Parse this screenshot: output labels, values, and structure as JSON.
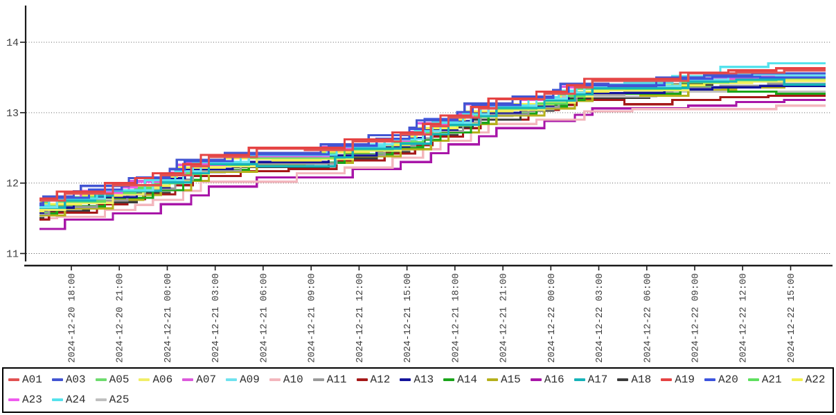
{
  "page": {
    "background": "#ffffff",
    "axis_color": "#1a1a1a",
    "tick_label_color": "#3c3c3c"
  },
  "legend": {
    "border_color": "#000000",
    "background": "#ffffff",
    "rows_hint": 2
  },
  "chart_data": {
    "type": "line",
    "subtype": "step",
    "title": "",
    "xlabel": "",
    "ylabel": "",
    "grid": {
      "horizontal": true,
      "vertical": false,
      "style": "dotted",
      "color": "#444444"
    },
    "legend_position": "bottom",
    "y_axis": {
      "ticks": [
        11,
        12,
        13,
        14
      ],
      "ylim": [
        10.8,
        14.5
      ]
    },
    "x_axis": {
      "tick_labels": [
        "2024-12-20 18:00",
        "2024-12-20 21:00",
        "2024-12-21 00:00",
        "2024-12-21 03:00",
        "2024-12-21 06:00",
        "2024-12-21 09:00",
        "2024-12-21 12:00",
        "2024-12-21 15:00",
        "2024-12-21 18:00",
        "2024-12-21 21:00",
        "2024-12-22 00:00",
        "2024-12-22 03:00",
        "2024-12-22 06:00",
        "2024-12-22 09:00",
        "2024-12-22 12:00",
        "2024-12-22 15:00"
      ],
      "tick_interval_hours": 3,
      "first_tick_hour": 2,
      "end_hour": 49.2
    },
    "x_hours": [
      0,
      2,
      5,
      8,
      11,
      14,
      17,
      20,
      23,
      26,
      29,
      32,
      35,
      38,
      41,
      44,
      47
    ],
    "series": [
      {
        "name": "A01",
        "color": "#e15252",
        "values": [
          11.75,
          11.85,
          11.97,
          12.11,
          12.37,
          12.49,
          12.47,
          12.59,
          12.69,
          12.93,
          13.19,
          13.27,
          13.45,
          13.45,
          13.56,
          13.57,
          13.6
        ]
      },
      {
        "name": "A03",
        "color": "#4355d2",
        "values": [
          11.71,
          11.81,
          11.96,
          12.07,
          12.33,
          12.43,
          12.43,
          12.55,
          12.68,
          12.89,
          13.13,
          13.23,
          13.41,
          13.38,
          13.5,
          13.53,
          13.56
        ]
      },
      {
        "name": "A05",
        "color": "#6edc6e",
        "values": [
          11.66,
          11.8,
          11.88,
          12.02,
          12.28,
          12.38,
          12.42,
          12.5,
          12.6,
          12.84,
          13.08,
          13.18,
          13.34,
          13.36,
          13.45,
          13.48,
          13.51
        ]
      },
      {
        "name": "A06",
        "color": "#f1ee68",
        "values": [
          11.62,
          11.72,
          11.84,
          12.02,
          12.24,
          12.34,
          12.34,
          12.46,
          12.56,
          12.84,
          13.04,
          13.14,
          13.32,
          13.32,
          13.45,
          13.44,
          13.47
        ]
      },
      {
        "name": "A07",
        "color": "#dc5adc",
        "values": [
          11.67,
          11.77,
          11.89,
          12.03,
          12.26,
          12.39,
          12.39,
          12.51,
          12.61,
          12.85,
          13.12,
          13.19,
          13.37,
          13.37,
          13.46,
          13.49,
          13.52
        ]
      },
      {
        "name": "A09",
        "color": "#6fe2ef",
        "values": [
          11.66,
          11.78,
          11.9,
          12.04,
          12.3,
          12.4,
          12.4,
          12.55,
          12.62,
          12.86,
          13.1,
          13.2,
          13.38,
          13.38,
          13.47,
          13.54,
          13.53
        ]
      },
      {
        "name": "A10",
        "color": "#f3b6bd",
        "values": [
          11.5,
          11.52,
          11.62,
          11.76,
          12.02,
          12.02,
          12.14,
          12.22,
          12.36,
          12.6,
          12.84,
          12.9,
          13.02,
          13.05,
          13.05,
          13.05,
          13.1
        ]
      },
      {
        "name": "A11",
        "color": "#9a9a9a",
        "values": [
          11.56,
          11.66,
          11.75,
          11.92,
          12.18,
          12.28,
          12.28,
          12.4,
          12.53,
          12.74,
          12.98,
          13.08,
          13.26,
          13.3,
          13.35,
          13.38,
          13.41
        ]
      },
      {
        "name": "A12",
        "color": "#a51818",
        "values": [
          11.48,
          11.58,
          11.7,
          11.84,
          12.1,
          12.17,
          12.2,
          12.32,
          12.42,
          12.66,
          12.9,
          13.04,
          13.18,
          13.12,
          13.18,
          13.22,
          13.24
        ]
      },
      {
        "name": "A13",
        "color": "#14149b",
        "values": [
          11.58,
          11.65,
          11.8,
          11.94,
          12.2,
          12.3,
          12.3,
          12.39,
          12.52,
          12.76,
          13.0,
          13.1,
          13.28,
          13.28,
          13.33,
          13.36,
          13.38
        ]
      },
      {
        "name": "A14",
        "color": "#1aa51a",
        "values": [
          11.57,
          11.67,
          11.79,
          11.9,
          12.19,
          12.29,
          12.29,
          12.41,
          12.51,
          12.72,
          12.99,
          13.09,
          13.27,
          13.27,
          13.36,
          13.3,
          13.27
        ]
      },
      {
        "name": "A15",
        "color": "#b5b01c",
        "values": [
          11.54,
          11.64,
          11.76,
          11.9,
          12.16,
          12.26,
          12.29,
          12.38,
          12.48,
          12.72,
          12.96,
          13.06,
          13.27,
          13.24,
          13.33,
          13.36,
          13.39
        ]
      },
      {
        "name": "A16",
        "color": "#a816a8",
        "values": [
          11.35,
          11.48,
          11.57,
          11.7,
          11.95,
          12.08,
          12.08,
          12.2,
          12.3,
          12.55,
          12.78,
          12.88,
          13.06,
          13.06,
          13.1,
          13.15,
          13.18
        ]
      },
      {
        "name": "A17",
        "color": "#17b3b9",
        "values": [
          11.65,
          11.75,
          11.89,
          12.01,
          12.27,
          12.24,
          12.24,
          12.49,
          12.56,
          12.83,
          13.07,
          13.17,
          13.35,
          13.35,
          13.44,
          13.47,
          13.4
        ]
      },
      {
        "name": "A18",
        "color": "#3b3b3b",
        "values": [
          11.51,
          11.61,
          11.73,
          11.87,
          12.16,
          12.23,
          12.23,
          12.35,
          12.45,
          12.69,
          12.9,
          13.03,
          13.21,
          13.21,
          13.4,
          13.5,
          13.53
        ]
      },
      {
        "name": "A19",
        "color": "#e54343",
        "values": [
          11.78,
          11.88,
          12.0,
          12.14,
          12.4,
          12.5,
          12.5,
          12.62,
          12.72,
          12.96,
          13.2,
          13.3,
          13.48,
          13.48,
          13.57,
          13.6,
          13.63
        ]
      },
      {
        "name": "A20",
        "color": "#3c54de",
        "values": [
          11.69,
          11.79,
          11.91,
          12.08,
          12.31,
          12.41,
          12.41,
          12.53,
          12.63,
          12.91,
          13.11,
          13.21,
          13.39,
          13.39,
          13.48,
          13.51,
          13.5
        ]
      },
      {
        "name": "A21",
        "color": "#5fdf5f",
        "values": [
          11.67,
          11.74,
          11.86,
          12.0,
          12.26,
          12.36,
          12.36,
          12.48,
          12.58,
          12.82,
          13.06,
          13.13,
          13.34,
          13.34,
          13.43,
          13.46,
          13.49
        ]
      },
      {
        "name": "A22",
        "color": "#f2ef50",
        "values": [
          11.6,
          11.7,
          11.82,
          11.96,
          12.22,
          12.35,
          12.32,
          12.44,
          12.54,
          12.78,
          13.02,
          13.12,
          13.3,
          13.33,
          13.39,
          13.42,
          13.45
        ]
      },
      {
        "name": "A23",
        "color": "#ef5bef",
        "values": [
          11.66,
          11.76,
          11.86,
          12.02,
          12.28,
          12.38,
          12.38,
          12.5,
          12.6,
          12.84,
          13.08,
          13.18,
          13.36,
          13.36,
          13.5,
          13.48,
          13.51
        ]
      },
      {
        "name": "A24",
        "color": "#55e2ec",
        "values": [
          11.68,
          11.78,
          11.9,
          12.04,
          12.3,
          12.4,
          12.4,
          12.52,
          12.62,
          12.86,
          13.1,
          13.22,
          13.4,
          13.42,
          13.52,
          13.65,
          13.7
        ]
      },
      {
        "name": "A25",
        "color": "#bfbfbf",
        "values": [
          11.53,
          11.63,
          11.75,
          11.89,
          12.15,
          12.25,
          12.25,
          12.4,
          12.47,
          12.71,
          12.95,
          13.05,
          13.23,
          13.23,
          13.3,
          13.3,
          13.3
        ]
      }
    ],
    "z_order": [
      "A16",
      "A10",
      "A12",
      "A18",
      "A25",
      "A15",
      "A14",
      "A11",
      "A13",
      "A22",
      "A06",
      "A21",
      "A05",
      "A23",
      "A07",
      "A17",
      "A09",
      "A24",
      "A20",
      "A03",
      "A01",
      "A19"
    ]
  }
}
